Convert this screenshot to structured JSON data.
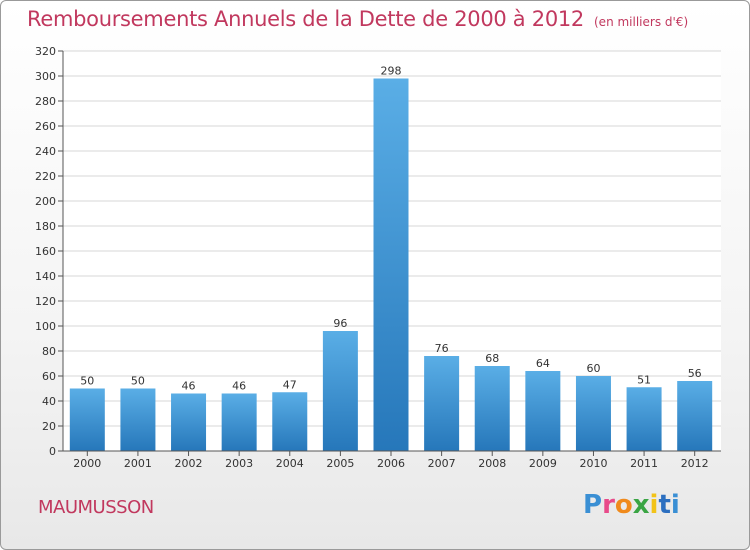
{
  "title": "Remboursements Annuels de la Dette de 2000 à 2012",
  "subtitle": "(en milliers d'€)",
  "commune": "MAUMUSSON",
  "logo": [
    "P",
    "r",
    "o",
    "x",
    "i",
    "t",
    "i"
  ],
  "colors": {
    "bar_top": "#5aaee6",
    "bar_bottom": "#2677ba",
    "title": "#c1385e",
    "grid": "#d7d7d7"
  },
  "chart_data": {
    "type": "bar",
    "title": "Remboursements Annuels de la Dette de 2000 à 2012",
    "subtitle": "(en milliers d'€)",
    "categories": [
      "2000",
      "2001",
      "2002",
      "2003",
      "2004",
      "2005",
      "2006",
      "2007",
      "2008",
      "2009",
      "2010",
      "2011",
      "2012"
    ],
    "values": [
      50,
      50,
      46,
      46,
      47,
      96,
      298,
      76,
      68,
      64,
      60,
      51,
      56
    ],
    "ylim": [
      0,
      320
    ],
    "yticks": [
      0,
      20,
      40,
      60,
      80,
      100,
      120,
      140,
      160,
      180,
      200,
      220,
      240,
      260,
      280,
      300,
      320
    ],
    "grid": true,
    "legend": "none"
  }
}
